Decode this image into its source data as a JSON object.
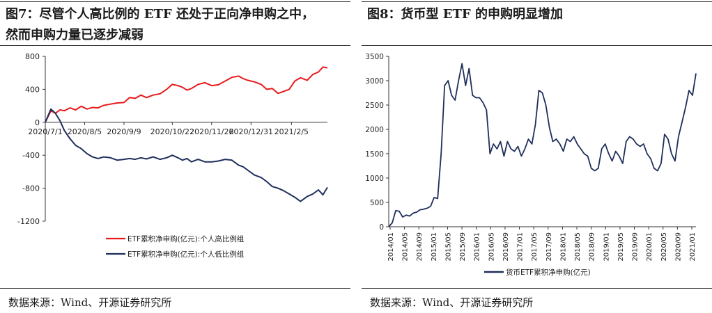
{
  "left": {
    "title_line1": "图7：尽管个人高比例的 ETF 还处于正向净申购之中，",
    "title_line2": "然而申购力量已逐步减弱",
    "source": "数据来源：Wind、开源证券研究所",
    "chart_data": {
      "type": "line",
      "ylim": [
        -1200,
        800
      ],
      "yticks": [
        800,
        400,
        0,
        -400,
        -800,
        -1200
      ],
      "xticks": [
        {
          "label": "2020/7/1",
          "t": 0
        },
        {
          "label": "2020/8/5",
          "t": 35
        },
        {
          "label": "2020/9/9",
          "t": 70
        },
        {
          "label": "2020/10/22",
          "t": 113
        },
        {
          "label": "2020/11/26",
          "t": 148
        },
        {
          "label": "2020/12/31",
          "t": 183
        },
        {
          "label": "2021/2/5",
          "t": 219
        }
      ],
      "xrange": [
        0,
        251
      ],
      "series": [
        {
          "name": "ETF累积净申购(亿元):个人高比例组",
          "color": "#e8191b",
          "t": [
            0,
            5,
            9,
            13,
            17,
            22,
            27,
            32,
            37,
            42,
            47,
            52,
            58,
            64,
            70,
            75,
            80,
            85,
            90,
            96,
            102,
            108,
            113,
            118,
            122,
            126,
            130,
            136,
            142,
            148,
            154,
            160,
            166,
            172,
            176,
            180,
            186,
            192,
            197,
            202,
            207,
            212,
            217,
            222,
            227,
            233,
            238,
            243,
            247,
            251
          ],
          "values": [
            0,
            140,
            110,
            150,
            140,
            175,
            150,
            195,
            160,
            180,
            175,
            205,
            220,
            235,
            240,
            300,
            290,
            330,
            300,
            330,
            345,
            400,
            460,
            445,
            425,
            390,
            410,
            460,
            480,
            445,
            455,
            500,
            545,
            560,
            530,
            510,
            490,
            460,
            400,
            410,
            350,
            375,
            400,
            500,
            540,
            510,
            580,
            610,
            670,
            660
          ]
        },
        {
          "name": "ETF累积净申购(亿元):个人低比例组",
          "color": "#1f2e5a",
          "t": [
            0,
            5,
            9,
            13,
            17,
            22,
            27,
            32,
            37,
            42,
            47,
            52,
            58,
            64,
            70,
            75,
            80,
            85,
            90,
            96,
            102,
            108,
            113,
            118,
            122,
            126,
            130,
            136,
            142,
            148,
            154,
            160,
            166,
            172,
            176,
            180,
            186,
            192,
            197,
            202,
            207,
            212,
            217,
            222,
            227,
            233,
            238,
            243,
            247,
            251
          ],
          "values": [
            0,
            160,
            110,
            20,
            -100,
            -200,
            -280,
            -320,
            -380,
            -420,
            -440,
            -420,
            -430,
            -460,
            -450,
            -440,
            -450,
            -430,
            -445,
            -420,
            -450,
            -430,
            -400,
            -430,
            -460,
            -440,
            -480,
            -450,
            -480,
            -480,
            -470,
            -450,
            -460,
            -520,
            -540,
            -580,
            -640,
            -670,
            -720,
            -780,
            -800,
            -830,
            -870,
            -910,
            -960,
            -900,
            -870,
            -820,
            -880,
            -790
          ]
        }
      ]
    }
  },
  "right": {
    "title": "图8：货币型 ETF 的申购明显增加",
    "source": "数据来源：Wind、开源证券研究所",
    "chart_data": {
      "type": "line",
      "ylim": [
        0,
        3500
      ],
      "yticks": [
        3500,
        3000,
        2500,
        2000,
        1500,
        1000,
        500,
        0
      ],
      "xrange": [
        0,
        88
      ],
      "xticks": [
        "2014/01",
        "2014/05",
        "2014/09",
        "2015/01",
        "2015/05",
        "2015/09",
        "2016/01",
        "2016/05",
        "2016/09",
        "2017/01",
        "2017/05",
        "2017/09",
        "2018/01",
        "2018/05",
        "2018/09",
        "2019/01",
        "2019/05",
        "2019/09",
        "2020/01",
        "2020/05",
        "2020/09",
        "2021/01"
      ],
      "series": [
        {
          "name": "货币ETF累积净申购(亿元)",
          "color": "#1f2e5a",
          "t": [
            0,
            1,
            2,
            3,
            4,
            5,
            6,
            7,
            8,
            9,
            10,
            11,
            12,
            13,
            14,
            15,
            16,
            17,
            18,
            19,
            20,
            21,
            22,
            23,
            24,
            25,
            26,
            27,
            28,
            29,
            30,
            31,
            32,
            33,
            34,
            35,
            36,
            37,
            38,
            39,
            40,
            41,
            42,
            43,
            44,
            45,
            46,
            47,
            48,
            49,
            50,
            51,
            52,
            53,
            54,
            55,
            56,
            57,
            58,
            59,
            60,
            61,
            62,
            63,
            64,
            65,
            66,
            67,
            68,
            69,
            70,
            71,
            72,
            73,
            74,
            75,
            76,
            77,
            78,
            79,
            80,
            81,
            82,
            83,
            84,
            85,
            86,
            87,
            88
          ],
          "values": [
            0,
            80,
            330,
            320,
            200,
            240,
            220,
            280,
            300,
            350,
            360,
            380,
            420,
            600,
            580,
            1500,
            2900,
            3000,
            2700,
            2600,
            3000,
            3350,
            2900,
            3250,
            2700,
            2650,
            2650,
            2550,
            2400,
            1500,
            1700,
            1600,
            1750,
            1450,
            1750,
            1600,
            1550,
            1650,
            1450,
            1600,
            1800,
            1700,
            2100,
            2800,
            2750,
            2500,
            2050,
            1750,
            1800,
            1700,
            1550,
            1800,
            1750,
            1850,
            1700,
            1600,
            1500,
            1450,
            1200,
            1150,
            1200,
            1600,
            1700,
            1500,
            1350,
            1550,
            1450,
            1300,
            1750,
            1850,
            1800,
            1700,
            1650,
            1700,
            1500,
            1400,
            1200,
            1150,
            1300,
            1900,
            1800,
            1500,
            1350,
            1850,
            2150,
            2450,
            2800,
            2700,
            3150
          ]
        }
      ]
    }
  }
}
